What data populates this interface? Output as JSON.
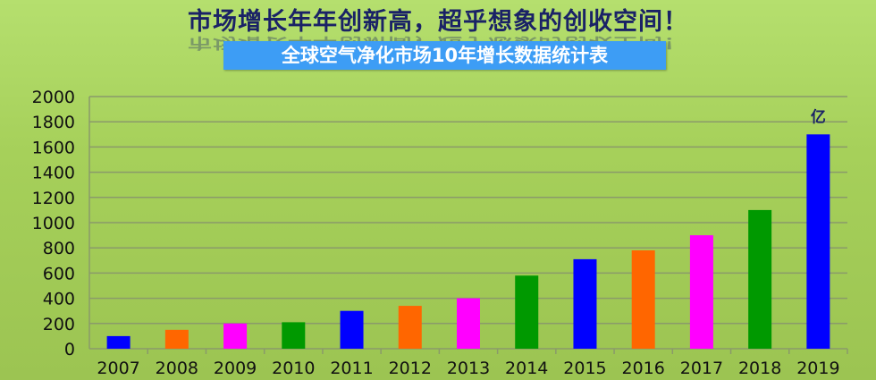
{
  "header": {
    "title": "市场增长年年创新高，超乎想象的创收空间！",
    "subtitle": "全球空气净化市场10年增长数据统计表"
  },
  "chart_data": {
    "type": "bar",
    "title": "全球空气净化市场10年增长数据统计表",
    "unit_label": "亿",
    "categories": [
      "2007",
      "2008",
      "2009",
      "2010",
      "2011",
      "2012",
      "2013",
      "2014",
      "2015",
      "2016",
      "2017",
      "2018",
      "2019"
    ],
    "values": [
      100,
      150,
      200,
      210,
      300,
      340,
      400,
      580,
      710,
      780,
      900,
      1100,
      1700
    ],
    "colors": [
      "#0000ff",
      "#ff6600",
      "#ff00ff",
      "#009900",
      "#0000ff",
      "#ff6600",
      "#ff00ff",
      "#009900",
      "#0000ff",
      "#ff6600",
      "#ff00ff",
      "#009900",
      "#0000ff"
    ],
    "ylim": [
      0,
      2000
    ],
    "yticks": [
      0,
      200,
      400,
      600,
      800,
      1000,
      1200,
      1400,
      1600,
      1800,
      2000
    ],
    "grid": true,
    "legend": "none"
  }
}
